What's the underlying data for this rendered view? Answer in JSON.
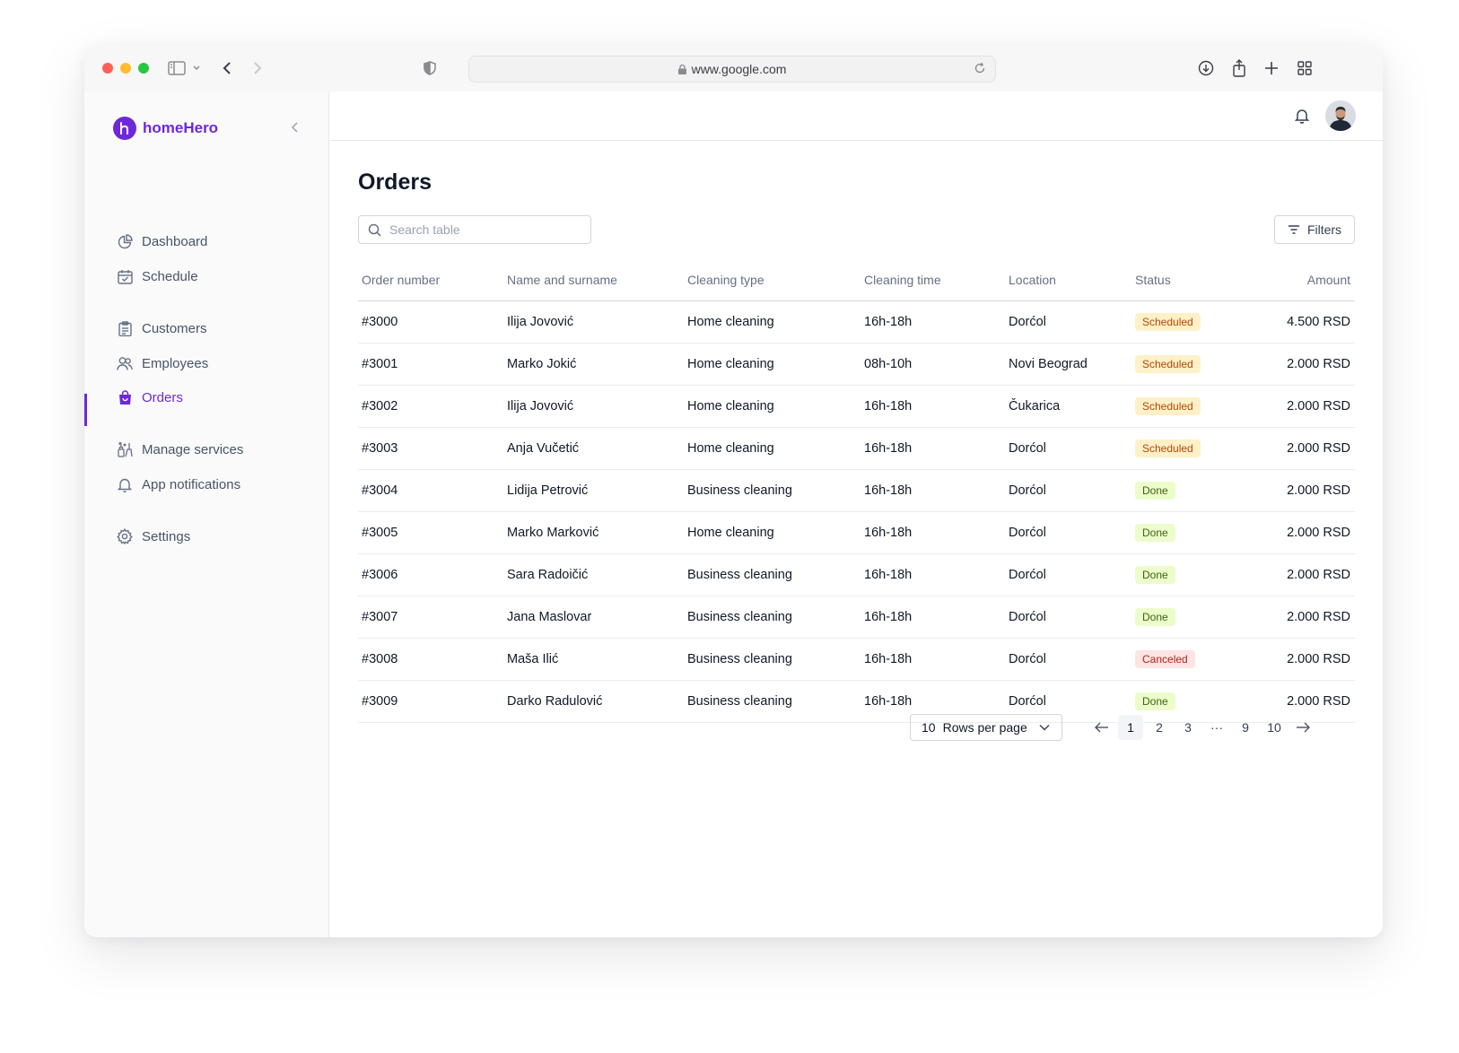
{
  "browser": {
    "url": "www.google.com"
  },
  "sidebar": {
    "brand": "homeHero",
    "items": [
      {
        "label": "Dashboard",
        "icon": "chart-pie-icon"
      },
      {
        "label": "Schedule",
        "icon": "calendar-icon"
      },
      {
        "label": "Customers",
        "icon": "clipboard-icon"
      },
      {
        "label": "Employees",
        "icon": "users-icon"
      },
      {
        "label": "Orders",
        "icon": "shopping-bag-icon",
        "active": true
      },
      {
        "label": "Manage services",
        "icon": "cleaning-icon"
      },
      {
        "label": "App notifications",
        "icon": "bell-icon"
      },
      {
        "label": "Settings",
        "icon": "gear-icon"
      }
    ]
  },
  "main": {
    "title": "Orders",
    "search_placeholder": "Search table",
    "filters_label": "Filters",
    "columns": [
      "Order number",
      "Name and surname",
      "Cleaning type",
      "Cleaning time",
      "Location",
      "Status",
      "Amount"
    ],
    "rows": [
      {
        "order": "#3000",
        "name": "Ilija Jovović",
        "type": "Home cleaning",
        "time": "16h-18h",
        "location": "Dorćol",
        "status": "Scheduled",
        "amount": "4.500 RSD"
      },
      {
        "order": "#3001",
        "name": "Marko Jokić",
        "type": "Home cleaning",
        "time": "08h-10h",
        "location": "Novi Beograd",
        "status": "Scheduled",
        "amount": "2.000 RSD"
      },
      {
        "order": "#3002",
        "name": "Ilija Jovović",
        "type": "Home cleaning",
        "time": "16h-18h",
        "location": "Čukarica",
        "status": "Scheduled",
        "amount": "2.000 RSD"
      },
      {
        "order": "#3003",
        "name": "Anja Vučetić",
        "type": "Home cleaning",
        "time": "16h-18h",
        "location": "Dorćol",
        "status": "Scheduled",
        "amount": "2.000 RSD"
      },
      {
        "order": "#3004",
        "name": "Lidija Petrović",
        "type": "Business cleaning",
        "time": "16h-18h",
        "location": "Dorćol",
        "status": "Done",
        "amount": "2.000 RSD"
      },
      {
        "order": "#3005",
        "name": "Marko Marković",
        "type": "Home cleaning",
        "time": "16h-18h",
        "location": "Dorćol",
        "status": "Done",
        "amount": "2.000 RSD"
      },
      {
        "order": "#3006",
        "name": "Sara Radoičić",
        "type": "Business cleaning",
        "time": "16h-18h",
        "location": "Dorćol",
        "status": "Done",
        "amount": "2.000 RSD"
      },
      {
        "order": "#3007",
        "name": "Jana Maslovar",
        "type": "Business cleaning",
        "time": "16h-18h",
        "location": "Dorćol",
        "status": "Done",
        "amount": "2.000 RSD"
      },
      {
        "order": "#3008",
        "name": "Maša Ilić",
        "type": "Business cleaning",
        "time": "16h-18h",
        "location": "Dorćol",
        "status": "Canceled",
        "amount": "2.000 RSD"
      },
      {
        "order": "#3009",
        "name": "Darko Radulović",
        "type": "Business cleaning",
        "time": "16h-18h",
        "location": "Dorćol",
        "status": "Done",
        "amount": "2.000 RSD"
      }
    ],
    "pagination": {
      "rows_per_page_value": "10",
      "rows_per_page_label": "Rows per page",
      "pages": [
        "1",
        "2",
        "3",
        "···",
        "9",
        "10"
      ],
      "current_page": "1"
    }
  },
  "colors": {
    "accent": "#6d28d9",
    "scheduled_bg": "#fef0c7",
    "scheduled_text": "#b54708",
    "done_bg": "#ecfccb",
    "done_text": "#3f6212",
    "canceled_bg": "#fee4e2",
    "canceled_text": "#b42318"
  }
}
